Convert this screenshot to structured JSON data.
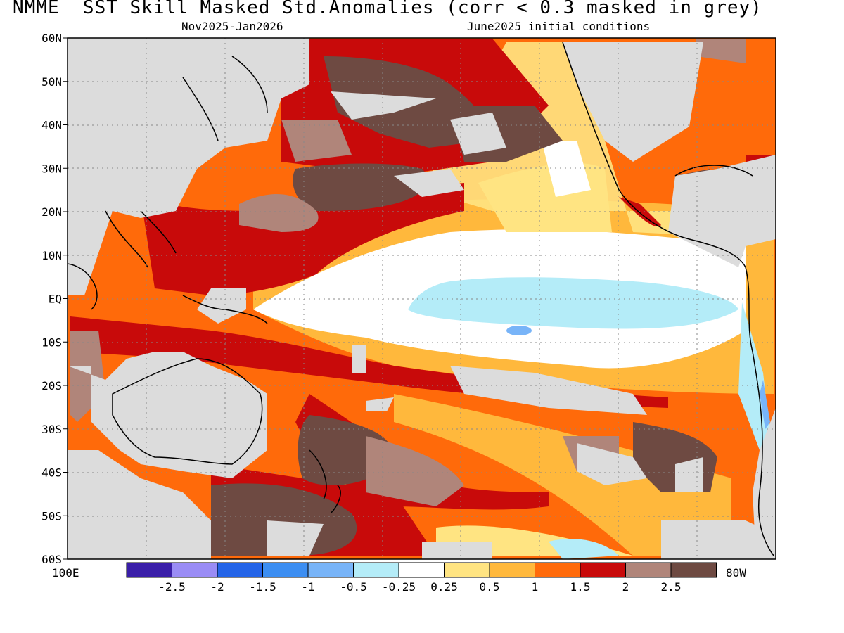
{
  "header": {
    "title": "NMME  SST Skill Masked Std.Anomalies (corr < 0.3 masked in grey)",
    "subtitle_left": "Nov2025-Jan2026",
    "subtitle_right": "June2025 initial conditions"
  },
  "map": {
    "lat_labels": [
      "60N",
      "50N",
      "40N",
      "30N",
      "20N",
      "10N",
      "EQ",
      "10S",
      "20S",
      "30S",
      "40S",
      "50S",
      "60S"
    ],
    "lon_left_label": "100E",
    "lon_right_label": "80W",
    "mask_color": "#dcdcdc",
    "mask_meaning": "corr < 0.3 masked in grey"
  },
  "colorbar": {
    "colors": [
      "#3a1ea8",
      "#9a8cf5",
      "#2464e8",
      "#3c8ef2",
      "#78b4f8",
      "#b4ecf8",
      "#ffffff",
      "#ffe482",
      "#ffb83c",
      "#ff6a0a",
      "#c80a0a",
      "#b0857a",
      "#6e4a42"
    ],
    "labels": [
      "-2.5",
      "-2",
      "-1.5",
      "-1",
      "-0.5",
      "-0.25",
      "0.25",
      "0.5",
      "1",
      "1.5",
      "2",
      "2.5"
    ]
  }
}
